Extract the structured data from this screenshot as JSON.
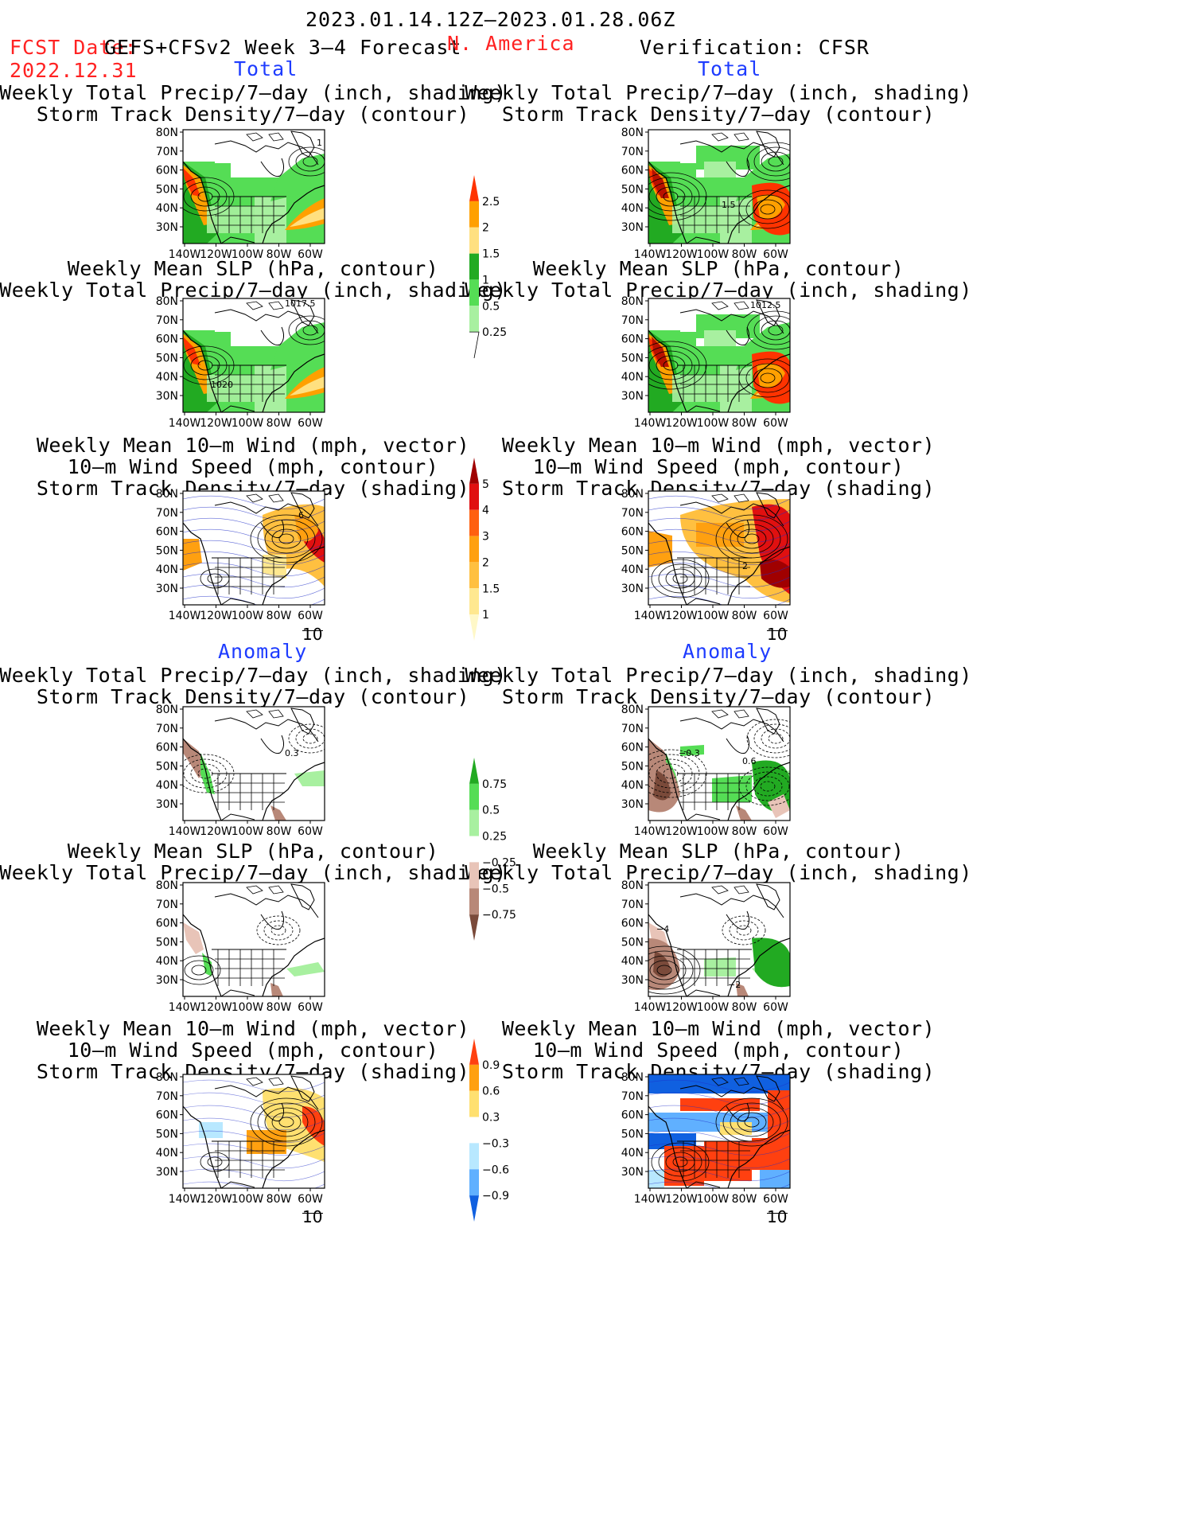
{
  "header": {
    "date_range": "2023.01.14.12Z–2023.01.28.06Z",
    "fcst_label": "FCST Date:",
    "fcst_model": "GEFS+CFSv2 Week 3–4 Forecast",
    "fcst_date": "2022.12.31",
    "region": "N. America",
    "verification": "Verification: CFSR"
  },
  "sections": {
    "total_left": "Total",
    "total_right": "Total",
    "anomaly_left": "Anomaly",
    "anomaly_right": "Anomaly"
  },
  "panel_titles": {
    "precip_track": [
      "Weekly Total Precip/7–day (inch, shading)",
      "Storm Track Density/7–day (contour)"
    ],
    "slp_precip": [
      "Weekly Mean SLP (hPa, contour)",
      "Weekly Total Precip/7–day (inch, shading)"
    ],
    "wind_track": [
      "Weekly Mean 10–m Wind (mph, vector)",
      "10–m Wind Speed (mph, contour)",
      "Storm Track Density/7–day (shading)"
    ]
  },
  "axes": {
    "lat_labels": [
      "80N",
      "70N",
      "60N",
      "50N",
      "40N",
      "30N"
    ],
    "lon_labels": [
      "140W",
      "120W",
      "100W",
      "80W",
      "60W"
    ]
  },
  "colorbars": {
    "precip_total": {
      "ticks": [
        "2.5",
        "2",
        "1.5",
        "1",
        "0.5",
        "0.25"
      ],
      "colors": [
        "#ff3300",
        "#ffa000",
        "#ffe080",
        "#22aa22",
        "#55dd55",
        "#a8f0a0"
      ]
    },
    "track_total": {
      "ticks": [
        "5",
        "4",
        "3",
        "2",
        "1.5",
        "1"
      ],
      "colors": [
        "#a00000",
        "#e01010",
        "#ff6010",
        "#ffa010",
        "#ffc040",
        "#ffe890",
        "#fff8c8"
      ]
    },
    "precip_anom": {
      "ticks": [
        "0.75",
        "0.5",
        "0.25",
        "−0.25",
        "−0.5",
        "−0.75"
      ],
      "colors": [
        "#22aa22",
        "#55dd55",
        "#a8f0a0",
        "#ffffff",
        "#e8c4b8",
        "#b88878",
        "#7a4a3a"
      ]
    },
    "track_anom": {
      "ticks": [
        "0.9",
        "0.6",
        "0.3",
        "−0.3",
        "−0.6",
        "−0.9"
      ],
      "colors": [
        "#ff4010",
        "#ffa010",
        "#ffe070",
        "#ffffff",
        "#b8e8ff",
        "#60b0ff",
        "#1060e0"
      ]
    }
  },
  "map_labels": {
    "lt_track": "1",
    "rt_track": "1.5",
    "lt_slp_a": "1017.5",
    "lt_slp_b": "1020",
    "rt_slp": "1012.5",
    "lt_wind": "6",
    "rt_wind": "2",
    "la_precip": "0.3",
    "ra_precip_a": "−0.3",
    "ra_precip_b": "0.6",
    "ra_slp_a": "−4",
    "ra_slp_b": "−2"
  },
  "vector_ref": "10"
}
